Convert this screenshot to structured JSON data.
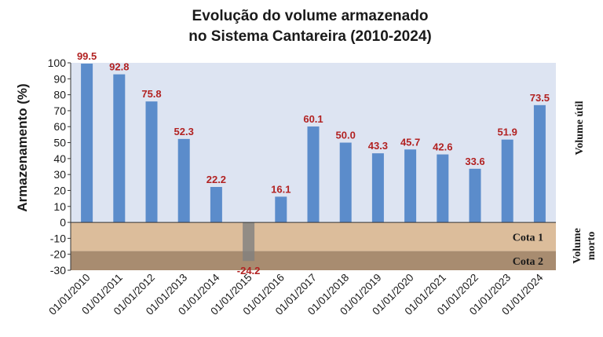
{
  "chart_data": {
    "type": "bar",
    "title_lines": [
      "Evolução do volume armazenado",
      "no Sistema Cantareira (2010-2024)"
    ],
    "ylabel": "Armazenamento (%)",
    "xlabel": "",
    "ylim": [
      -30,
      100
    ],
    "yticks": [
      -30,
      -20,
      -10,
      0,
      10,
      20,
      30,
      40,
      50,
      60,
      70,
      80,
      90,
      100
    ],
    "categories": [
      "01/01/2010",
      "01/01/2011",
      "01/01/2012",
      "01/01/2013",
      "01/01/2014",
      "01/01/2015",
      "01/01/2016",
      "01/01/2017",
      "01/01/2018",
      "01/01/2019",
      "01/01/2020",
      "01/01/2021",
      "01/01/2022",
      "01/01/2023",
      "01/01/2024"
    ],
    "values": [
      99.5,
      92.8,
      75.8,
      52.3,
      22.2,
      -24.2,
      16.1,
      60.1,
      50.0,
      43.3,
      45.7,
      42.6,
      33.6,
      51.9,
      73.5
    ],
    "value_labels": [
      "99.5",
      "92.8",
      "75.8",
      "52.3",
      "22.2",
      "-24.2",
      "16.1",
      "60.1",
      "50.0",
      "43.3",
      "45.7",
      "42.6",
      "33.6",
      "51.9",
      "73.5"
    ],
    "zones": [
      {
        "label": "Cota 1",
        "from": -18,
        "to": 0,
        "color": "#dcbd9b"
      },
      {
        "label": "Cota 2",
        "from": -30,
        "to": -18,
        "color": "#a88c70"
      }
    ],
    "side_labels": {
      "upper": "Volume útil",
      "lower": "Volume morto"
    },
    "colors": {
      "bar": "#5b8ccb",
      "negative_bar": "#808080",
      "plot_background": "#dde4f2",
      "data_label": "#b22222"
    },
    "grid": false
  }
}
